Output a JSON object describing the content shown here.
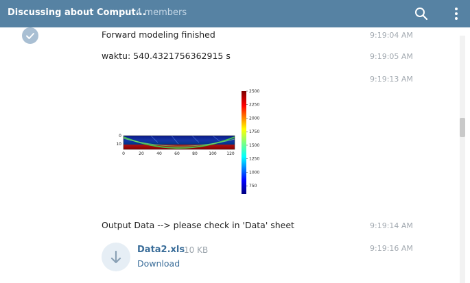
{
  "header": {
    "title": "Discussing about Comput...",
    "members": "4 members",
    "search_icon": "search-icon",
    "more_icon": "more-vertical-icon"
  },
  "messages": [
    {
      "text": "Forward modeling finished",
      "time": "9:19:04 AM"
    },
    {
      "text": "waktu: 540.4321756362915 s",
      "time": "9:19:05 AM"
    },
    {
      "text": "",
      "time": "9:19:13 AM"
    },
    {
      "text": "Output Data --> please check in 'Data' sheet",
      "time": "9:19:14 AM"
    },
    {
      "text": "",
      "time": "9:19:16 AM"
    }
  ],
  "file": {
    "name": "Data2.xls",
    "size": "10 KB",
    "download_label": "Download",
    "icon": "download-arrow-icon"
  },
  "colors": {
    "header_bg": "#5682a3",
    "link": "#3a6d99",
    "time": "#a2a9b0"
  },
  "chart_data": {
    "type": "heatmap",
    "x_ticks": [
      "0",
      "20",
      "40",
      "60",
      "80",
      "100",
      "120"
    ],
    "y_ticks": [
      "0",
      "10"
    ],
    "colorbar_ticks": [
      "2500",
      "2250",
      "2000",
      "1750",
      "1500",
      "1250",
      "1000",
      "750"
    ],
    "colorbar_range": [
      600,
      2500
    ],
    "colormap": "jet"
  }
}
